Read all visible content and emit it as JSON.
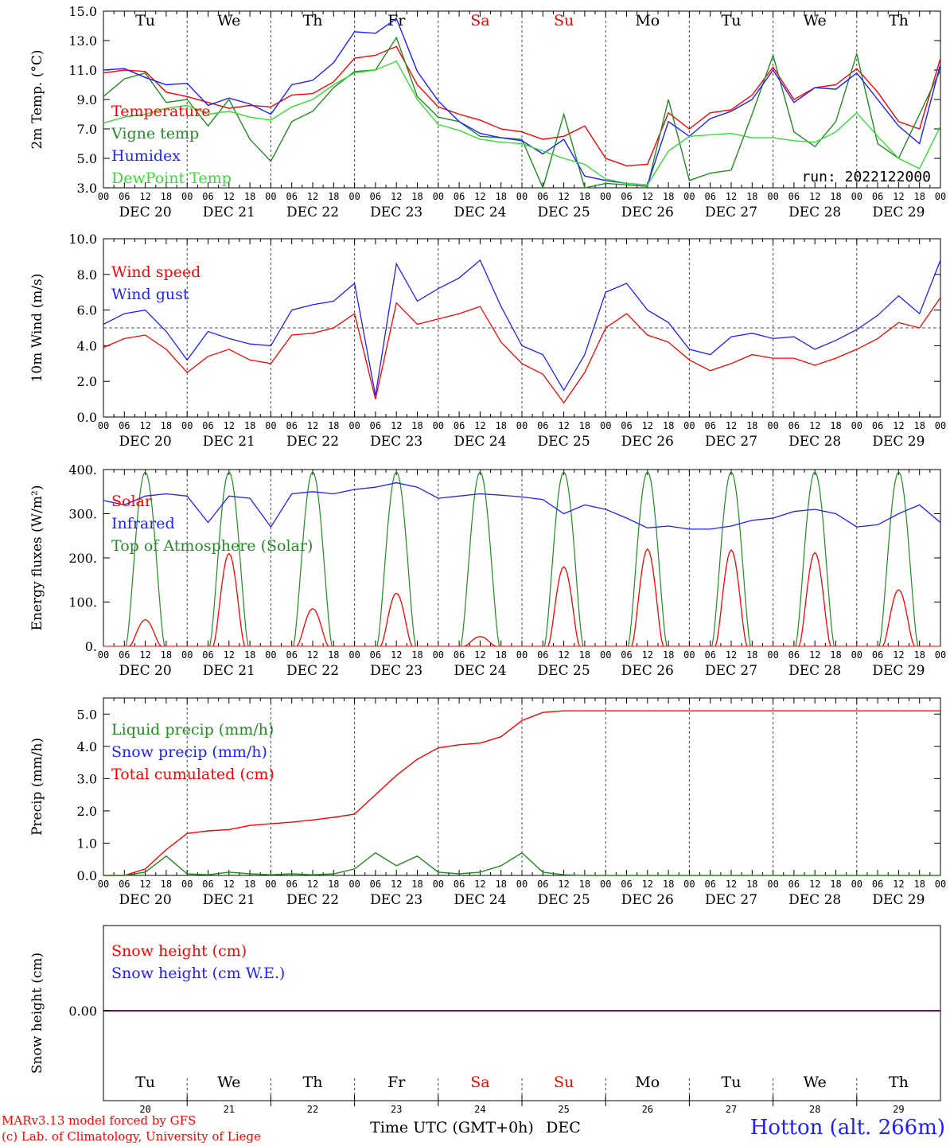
{
  "colors": {
    "red": "#ff0000",
    "green": "#228b22",
    "blue": "#1f1fff",
    "lightgreen": "#33dd33",
    "purple": "#800080",
    "grid": "#555555",
    "sat_sun": "#ff0000"
  },
  "hours": [
    "00",
    "06",
    "12",
    "18"
  ],
  "days": [
    "DEC 20",
    "DEC 21",
    "DEC 22",
    "DEC 23",
    "DEC 24",
    "DEC 25",
    "DEC 26",
    "DEC 27",
    "DEC 28",
    "DEC 29"
  ],
  "weekdays": [
    "Tu",
    "We",
    "Th",
    "Fr",
    "Sa",
    "Su",
    "Mo",
    "Tu",
    "We",
    "Th"
  ],
  "weekday_colors": [
    "black",
    "black",
    "black",
    "black",
    "red",
    "red",
    "black",
    "black",
    "black",
    "black"
  ],
  "day_numbers": [
    "20",
    "21",
    "22",
    "23",
    "24",
    "25",
    "26",
    "27",
    "28",
    "29"
  ],
  "footer": {
    "model": "MARv3.13 model forced by GFS",
    "lab": "(c) Lab. of Climatology, University of Liege",
    "xlabel": "Time UTC (GMT+0h)",
    "month": "DEC",
    "station": "Hotton (alt. 266m)"
  },
  "chart_data": [
    {
      "type": "line",
      "ylabel": "2m Temp. (°C)",
      "ylim": [
        3.0,
        15.0
      ],
      "yticks": [
        "3.0",
        "5.0",
        "7.0",
        "9.0",
        "11.0",
        "13.0",
        "15.0"
      ],
      "annotation": "run: 2022122000",
      "legend": [
        "Temperature",
        "Vigne temp",
        "Humidex",
        "DewPoint Temp"
      ],
      "x_hours": [
        0,
        6,
        12,
        18,
        24,
        30,
        36,
        42,
        48,
        54,
        60,
        66,
        72,
        78,
        84,
        90,
        96,
        102,
        108,
        114,
        120,
        126,
        132,
        138,
        144,
        150,
        156,
        162,
        168,
        174,
        180,
        186,
        192,
        198,
        204,
        210,
        216,
        222,
        228,
        234,
        240
      ],
      "series": [
        {
          "name": "Temperature",
          "color": "red",
          "values": [
            10.8,
            11.0,
            10.9,
            9.5,
            9.2,
            8.8,
            8.4,
            8.6,
            8.5,
            9.3,
            9.4,
            10.2,
            11.8,
            12.0,
            12.6,
            10.0,
            8.5,
            8.0,
            7.6,
            7.0,
            6.8,
            6.3,
            6.5,
            7.2,
            5.0,
            4.5,
            4.6,
            8.1,
            7.0,
            8.1,
            8.3,
            9.3,
            11.2,
            9.0,
            9.8,
            10.0,
            11.1,
            9.5,
            7.5,
            7.0,
            11.8
          ]
        },
        {
          "name": "Vigne temp",
          "color": "green",
          "values": [
            9.2,
            10.4,
            10.8,
            8.8,
            9.0,
            7.2,
            9.0,
            6.3,
            4.8,
            7.5,
            8.2,
            9.8,
            10.9,
            11.0,
            13.2,
            9.2,
            7.8,
            7.5,
            6.5,
            6.4,
            6.3,
            3.0,
            8.0,
            3.0,
            3.3,
            3.2,
            3.1,
            9.0,
            3.5,
            4.0,
            4.2,
            8.0,
            12.0,
            6.8,
            5.8,
            7.5,
            12.1,
            6.0,
            5.0,
            8.0,
            11.0
          ]
        },
        {
          "name": "Humidex",
          "color": "blue",
          "values": [
            11.0,
            11.1,
            10.5,
            10.0,
            10.1,
            8.6,
            9.1,
            8.7,
            8.0,
            10.0,
            10.3,
            11.5,
            13.6,
            13.5,
            14.5,
            10.9,
            8.9,
            7.5,
            6.7,
            6.4,
            6.2,
            5.3,
            6.3,
            3.8,
            3.5,
            3.3,
            3.2,
            7.5,
            6.5,
            7.7,
            8.2,
            9.0,
            11.0,
            8.8,
            9.8,
            9.7,
            10.8,
            9.0,
            7.2,
            6.0,
            11.4
          ]
        },
        {
          "name": "DewPoint Temp",
          "color": "lightgreen",
          "values": [
            7.4,
            7.8,
            8.0,
            8.4,
            8.6,
            8.0,
            8.2,
            7.8,
            7.6,
            8.5,
            9.0,
            10.0,
            10.8,
            11.0,
            11.6,
            9.0,
            7.3,
            6.9,
            6.3,
            6.1,
            6.0,
            5.5,
            5.0,
            4.6,
            3.6,
            3.3,
            3.2,
            5.5,
            6.5,
            6.6,
            6.7,
            6.4,
            6.4,
            6.2,
            6.1,
            6.8,
            8.1,
            6.5,
            5.0,
            4.3,
            7.2
          ]
        }
      ]
    },
    {
      "type": "line",
      "ylabel": "10m Wind (m/s)",
      "ylim": [
        0.0,
        10.0
      ],
      "yticks": [
        "0.0",
        "2.0",
        "4.0",
        "6.0",
        "8.0",
        "10.0"
      ],
      "reference_line": 5.0,
      "legend": [
        "Wind speed",
        "Wind gust"
      ],
      "x_hours": [
        0,
        6,
        12,
        18,
        24,
        30,
        36,
        42,
        48,
        54,
        60,
        66,
        72,
        78,
        84,
        90,
        96,
        102,
        108,
        114,
        120,
        126,
        132,
        138,
        144,
        150,
        156,
        162,
        168,
        174,
        180,
        186,
        192,
        198,
        204,
        210,
        216,
        222,
        228,
        234,
        240
      ],
      "series": [
        {
          "name": "Wind speed",
          "color": "red",
          "values": [
            3.9,
            4.4,
            4.6,
            3.8,
            2.5,
            3.4,
            3.8,
            3.2,
            3.0,
            4.6,
            4.7,
            5.0,
            5.8,
            1.0,
            6.4,
            5.2,
            5.5,
            5.8,
            6.2,
            4.2,
            3.0,
            2.4,
            0.8,
            2.5,
            5.0,
            5.8,
            4.6,
            4.2,
            3.2,
            2.6,
            3.0,
            3.5,
            3.3,
            3.3,
            2.9,
            3.3,
            3.8,
            4.4,
            5.3,
            5.0,
            6.7
          ]
        },
        {
          "name": "Wind gust",
          "color": "blue",
          "values": [
            5.2,
            5.8,
            6.0,
            4.8,
            3.2,
            4.8,
            4.4,
            4.1,
            4.0,
            6.0,
            6.3,
            6.5,
            7.5,
            1.2,
            8.6,
            6.5,
            7.2,
            7.8,
            8.8,
            6.2,
            4.0,
            3.5,
            1.5,
            3.5,
            7.0,
            7.5,
            6.0,
            5.3,
            3.8,
            3.5,
            4.5,
            4.7,
            4.4,
            4.5,
            3.8,
            4.3,
            4.9,
            5.7,
            6.8,
            5.8,
            8.8
          ]
        }
      ]
    },
    {
      "type": "line",
      "ylabel": "Energy fluxes (W/m²)",
      "ylim": [
        0,
        400
      ],
      "yticks": [
        "0.",
        "100.",
        "200.",
        "300.",
        "400."
      ],
      "legend": [
        "Solar",
        "Infrared",
        "Top of Atmosphere (Solar)"
      ],
      "toa_peak": 395,
      "solar_peaks": [
        {
          "day": 0,
          "peak": 60
        },
        {
          "day": 1,
          "peak": 210
        },
        {
          "day": 2,
          "peak": 85
        },
        {
          "day": 3,
          "peak": 120
        },
        {
          "day": 4,
          "peak": 22
        },
        {
          "day": 5,
          "peak": 180
        },
        {
          "day": 6,
          "peak": 220
        },
        {
          "day": 7,
          "peak": 218
        },
        {
          "day": 8,
          "peak": 212
        },
        {
          "day": 9,
          "peak": 128
        }
      ],
      "infrared": {
        "name": "Infrared",
        "color": "blue",
        "x_hours": [
          0,
          6,
          12,
          18,
          24,
          30,
          36,
          42,
          48,
          54,
          60,
          66,
          72,
          78,
          84,
          90,
          96,
          102,
          108,
          114,
          120,
          126,
          132,
          138,
          144,
          150,
          156,
          162,
          168,
          174,
          180,
          186,
          192,
          198,
          204,
          210,
          216,
          222,
          228,
          234,
          240
        ],
        "values": [
          330,
          320,
          340,
          345,
          340,
          280,
          340,
          335,
          270,
          345,
          350,
          345,
          355,
          360,
          370,
          360,
          335,
          340,
          345,
          342,
          338,
          332,
          300,
          320,
          310,
          290,
          268,
          272,
          265,
          265,
          272,
          285,
          290,
          305,
          310,
          300,
          270,
          275,
          300,
          320,
          280
        ]
      }
    },
    {
      "type": "line",
      "ylabel": "Precip (mm/h)",
      "ylim": [
        0.0,
        5.5
      ],
      "yticks": [
        "0.0",
        "1.0",
        "2.0",
        "3.0",
        "4.0",
        "5.0"
      ],
      "legend": [
        "Liquid precip (mm/h)",
        "Snow precip (mm/h)",
        "Total cumulated (cm)"
      ],
      "x_hours": [
        0,
        6,
        12,
        18,
        24,
        30,
        36,
        42,
        48,
        54,
        60,
        66,
        72,
        78,
        84,
        90,
        96,
        102,
        108,
        114,
        120,
        126,
        132,
        138,
        144,
        150,
        156,
        162,
        168,
        174,
        180,
        186,
        192,
        198,
        204,
        210,
        216,
        222,
        228,
        234,
        240
      ],
      "series": [
        {
          "name": "Total cumulated (cm)",
          "color": "red",
          "values": [
            0,
            0,
            0.2,
            0.8,
            1.3,
            1.38,
            1.42,
            1.55,
            1.6,
            1.65,
            1.72,
            1.8,
            1.9,
            2.5,
            3.1,
            3.6,
            3.95,
            4.05,
            4.1,
            4.3,
            4.8,
            5.05,
            5.1,
            5.1,
            5.1,
            5.1,
            5.1,
            5.1,
            5.1,
            5.1,
            5.1,
            5.1,
            5.1,
            5.1,
            5.1,
            5.1,
            5.1,
            5.1,
            5.1,
            5.1,
            5.1
          ]
        },
        {
          "name": "Liquid precip (mm/h)",
          "color": "green",
          "values": [
            0,
            0,
            0.1,
            0.6,
            0.05,
            0.02,
            0.1,
            0.05,
            0.02,
            0.05,
            0.02,
            0.05,
            0.2,
            0.7,
            0.3,
            0.6,
            0.1,
            0.05,
            0.1,
            0.3,
            0.7,
            0.1,
            0.02,
            0,
            0,
            0,
            0,
            0,
            0,
            0,
            0,
            0,
            0,
            0,
            0,
            0,
            0,
            0,
            0,
            0,
            0
          ]
        }
      ]
    },
    {
      "type": "line",
      "ylabel": "Snow height (cm)",
      "yticks": [
        "0.00"
      ],
      "legend": [
        "Snow height (cm)",
        "Snow height (cm W.E.)"
      ],
      "series": [
        {
          "name": "Snow height (cm)",
          "color": "purple",
          "values": [
            0.0,
            0.0
          ]
        }
      ]
    }
  ]
}
